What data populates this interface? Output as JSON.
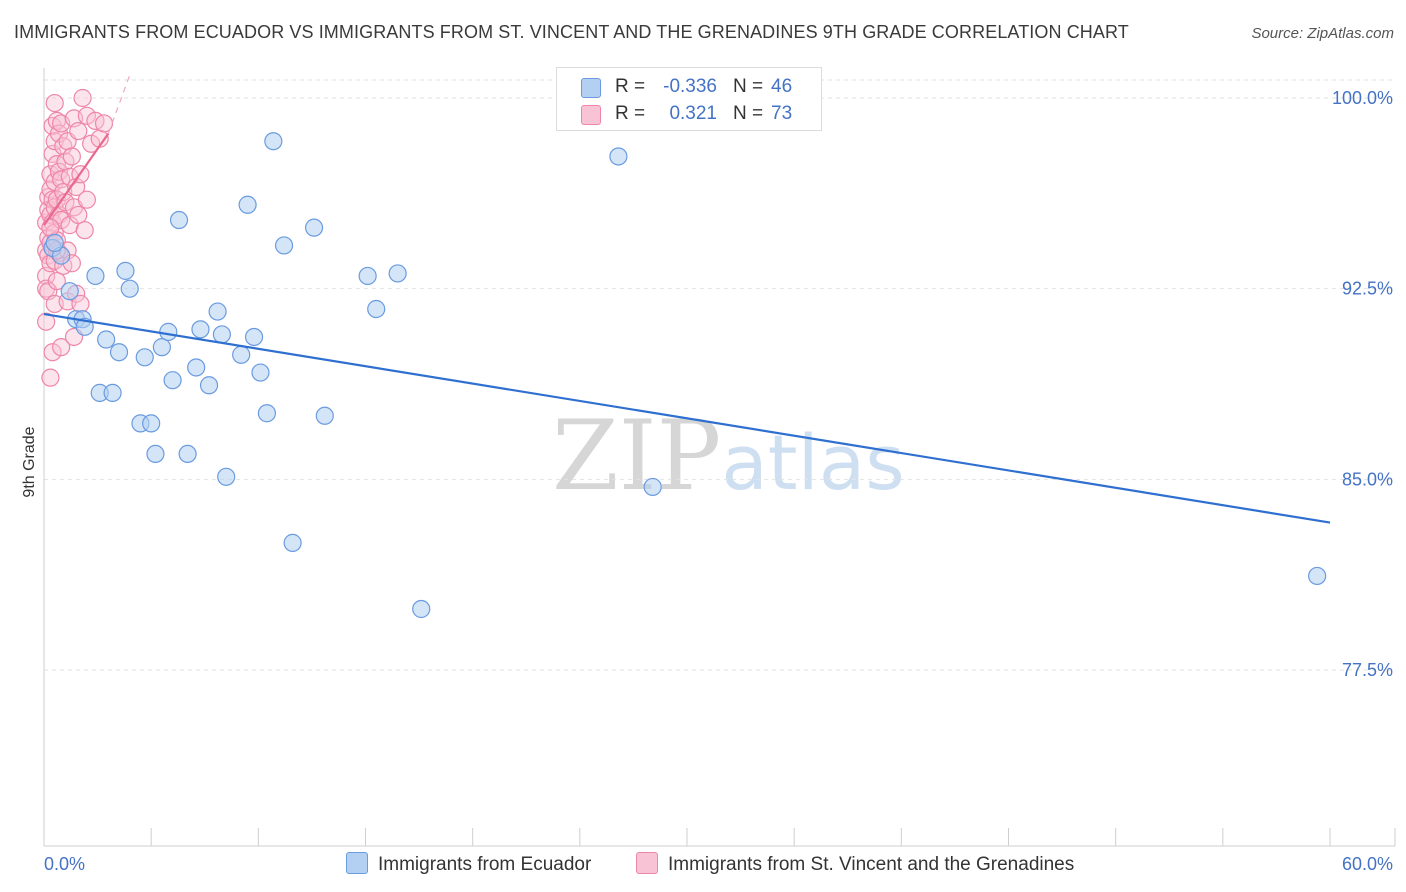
{
  "title": "IMMIGRANTS FROM ECUADOR VS IMMIGRANTS FROM ST. VINCENT AND THE GRENADINES 9TH GRADE CORRELATION CHART",
  "source": "Source: ZipAtlas.com",
  "watermark": {
    "zip": "ZIP",
    "atlas": "atlas"
  },
  "legend": {
    "rows": [
      {
        "r_label": "R =",
        "r_value": "-0.336",
        "n_label": "N =",
        "n_value": "46",
        "color": "#a8c8f0",
        "border": "#6a9be0"
      },
      {
        "r_label": "R =",
        "r_value": "0.321",
        "n_label": "N =",
        "n_value": "73",
        "color": "#f8bcd0",
        "border": "#ee86a8"
      }
    ]
  },
  "bottom_legend": {
    "series1": "Immigrants from Ecuador",
    "series2": "Immigrants from St. Vincent and the Grenadines"
  },
  "chart_data": {
    "type": "scatter",
    "title": "IMMIGRANTS FROM ECUADOR VS IMMIGRANTS FROM ST. VINCENT AND THE GRENADINES 9TH GRADE CORRELATION CHART",
    "xlabel": "",
    "ylabel": "9th Grade",
    "xlim": [
      0,
      60
    ],
    "ylim": [
      70.0,
      101.5
    ],
    "x_tick_labels": [
      "0.0%",
      "60.0%"
    ],
    "y_ticks": [
      77.5,
      85.0,
      92.5,
      100.0
    ],
    "y_tick_labels": [
      "77.5%",
      "85.0%",
      "92.5%",
      "100.0%"
    ],
    "grid": true,
    "series": [
      {
        "name": "Immigrants from Ecuador",
        "color": "#4472c4",
        "fill": "#b3cff2",
        "points": [
          [
            0.4,
            94.1
          ],
          [
            0.8,
            93.8
          ],
          [
            1.2,
            92.4
          ],
          [
            1.5,
            91.3
          ],
          [
            1.8,
            91.3
          ],
          [
            1.9,
            91.0
          ],
          [
            2.4,
            93.0
          ],
          [
            2.6,
            88.4
          ],
          [
            2.9,
            90.5
          ],
          [
            3.2,
            88.4
          ],
          [
            3.5,
            90.0
          ],
          [
            3.8,
            93.2
          ],
          [
            4.0,
            92.5
          ],
          [
            4.5,
            87.2
          ],
          [
            4.7,
            89.8
          ],
          [
            5.0,
            87.2
          ],
          [
            5.2,
            86.0
          ],
          [
            5.5,
            90.2
          ],
          [
            5.8,
            90.8
          ],
          [
            6.0,
            88.9
          ],
          [
            6.3,
            95.2
          ],
          [
            6.7,
            86.0
          ],
          [
            7.1,
            89.4
          ],
          [
            7.3,
            90.9
          ],
          [
            7.7,
            88.7
          ],
          [
            8.1,
            91.6
          ],
          [
            8.3,
            90.7
          ],
          [
            8.5,
            85.1
          ],
          [
            9.2,
            89.9
          ],
          [
            9.5,
            95.8
          ],
          [
            9.8,
            90.6
          ],
          [
            10.1,
            89.2
          ],
          [
            10.4,
            87.6
          ],
          [
            10.7,
            98.3
          ],
          [
            11.2,
            94.2
          ],
          [
            11.6,
            82.5
          ],
          [
            12.6,
            94.9
          ],
          [
            13.1,
            87.5
          ],
          [
            15.1,
            93.0
          ],
          [
            15.5,
            91.7
          ],
          [
            16.5,
            93.1
          ],
          [
            17.6,
            79.9
          ],
          [
            26.8,
            97.7
          ],
          [
            28.4,
            84.7
          ],
          [
            59.4,
            81.2
          ],
          [
            0.5,
            94.3
          ]
        ],
        "trendline": {
          "x": [
            0,
            60
          ],
          "y": [
            91.5,
            83.3
          ]
        }
      },
      {
        "name": "Immigrants from St. Vincent and the Grenadines",
        "color": "#e8688f",
        "fill": "#f8c3d4",
        "points": [
          [
            0.1,
            95.1
          ],
          [
            0.1,
            94.0
          ],
          [
            0.1,
            93.0
          ],
          [
            0.1,
            92.5
          ],
          [
            0.1,
            91.2
          ],
          [
            0.2,
            96.1
          ],
          [
            0.2,
            95.6
          ],
          [
            0.2,
            94.5
          ],
          [
            0.2,
            93.8
          ],
          [
            0.2,
            92.4
          ],
          [
            0.3,
            97.0
          ],
          [
            0.3,
            96.4
          ],
          [
            0.3,
            95.4
          ],
          [
            0.3,
            94.3
          ],
          [
            0.3,
            93.5
          ],
          [
            0.3,
            89.0
          ],
          [
            0.4,
            98.9
          ],
          [
            0.4,
            97.8
          ],
          [
            0.4,
            96.0
          ],
          [
            0.4,
            95.1
          ],
          [
            0.4,
            94.1
          ],
          [
            0.4,
            90.0
          ],
          [
            0.5,
            99.8
          ],
          [
            0.5,
            98.3
          ],
          [
            0.5,
            96.7
          ],
          [
            0.5,
            95.7
          ],
          [
            0.5,
            94.7
          ],
          [
            0.5,
            93.6
          ],
          [
            0.5,
            91.9
          ],
          [
            0.6,
            99.1
          ],
          [
            0.6,
            97.4
          ],
          [
            0.6,
            96.0
          ],
          [
            0.6,
            94.4
          ],
          [
            0.6,
            92.8
          ],
          [
            0.7,
            98.6
          ],
          [
            0.7,
            97.1
          ],
          [
            0.7,
            95.4
          ],
          [
            0.7,
            93.9
          ],
          [
            0.8,
            99.0
          ],
          [
            0.8,
            96.8
          ],
          [
            0.8,
            95.2
          ],
          [
            0.8,
            90.2
          ],
          [
            0.9,
            98.1
          ],
          [
            0.9,
            96.3
          ],
          [
            0.9,
            93.4
          ],
          [
            1.0,
            97.5
          ],
          [
            1.0,
            95.9
          ],
          [
            1.1,
            98.3
          ],
          [
            1.1,
            94.0
          ],
          [
            1.1,
            92.0
          ],
          [
            1.2,
            96.9
          ],
          [
            1.2,
            95.0
          ],
          [
            1.3,
            97.7
          ],
          [
            1.3,
            93.5
          ],
          [
            1.4,
            99.2
          ],
          [
            1.4,
            95.7
          ],
          [
            1.4,
            90.6
          ],
          [
            1.5,
            96.5
          ],
          [
            1.5,
            92.3
          ],
          [
            1.6,
            98.7
          ],
          [
            1.6,
            95.4
          ],
          [
            1.7,
            97.0
          ],
          [
            1.7,
            91.9
          ],
          [
            1.8,
            100.0
          ],
          [
            1.9,
            94.8
          ],
          [
            2.0,
            99.3
          ],
          [
            2.0,
            96.0
          ],
          [
            2.2,
            98.2
          ],
          [
            2.4,
            99.1
          ],
          [
            2.6,
            98.4
          ],
          [
            2.8,
            99.0
          ],
          [
            0.3,
            94.9
          ],
          [
            0.6,
            94.0
          ]
        ],
        "trendline": {
          "x": [
            0,
            3.0
          ],
          "y": [
            95.0,
            98.6
          ]
        }
      }
    ]
  }
}
